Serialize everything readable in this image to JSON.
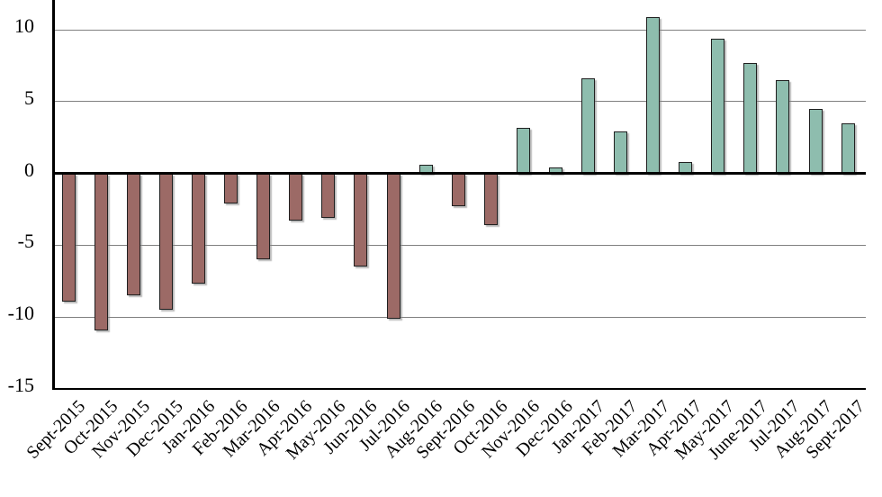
{
  "chart_data": {
    "type": "bar",
    "title": "",
    "xlabel": "",
    "ylabel": "",
    "categories": [
      "Sept-2015",
      "Oct-2015",
      "Nov-2015",
      "Dec-2015",
      "Jan-2016",
      "Feb-2016",
      "Mar-2016",
      "Apr-2016",
      "May-2016",
      "Jun-2016",
      "Jul-2016",
      "Aug-2016",
      "Sept-2016",
      "Oct-2016",
      "Nov-2016",
      "Dec-2016",
      "Jan-2017",
      "Feb-2017",
      "Mar-2017",
      "Apr-2017",
      "May-2017",
      "June-2017",
      "Jul-2017",
      "Aug-2017",
      "Sept-2017"
    ],
    "values": [
      -8.9,
      -10.9,
      -8.5,
      -9.5,
      -7.7,
      -2.1,
      -6.0,
      -3.3,
      -3.1,
      -6.5,
      -10.1,
      0.6,
      -2.3,
      -3.6,
      3.2,
      0.4,
      6.6,
      2.9,
      10.9,
      0.8,
      9.4,
      7.7,
      6.5,
      4.5,
      3.5
    ],
    "yticks": [
      10,
      5,
      0,
      -5,
      -10,
      -15
    ],
    "ylim": [
      -15,
      12.1
    ],
    "grid": true,
    "legend": false,
    "x_label_rotation_deg": 45,
    "colors": {
      "positive_bar": "#8EBDAE",
      "negative_bar": "#9C6A66",
      "bar_border": "#1F1F1F",
      "gridline": "#808080",
      "zero_line": "#000000",
      "axis_line": "#000000",
      "background": "#FFFFFF",
      "label_text": "#000000"
    }
  }
}
